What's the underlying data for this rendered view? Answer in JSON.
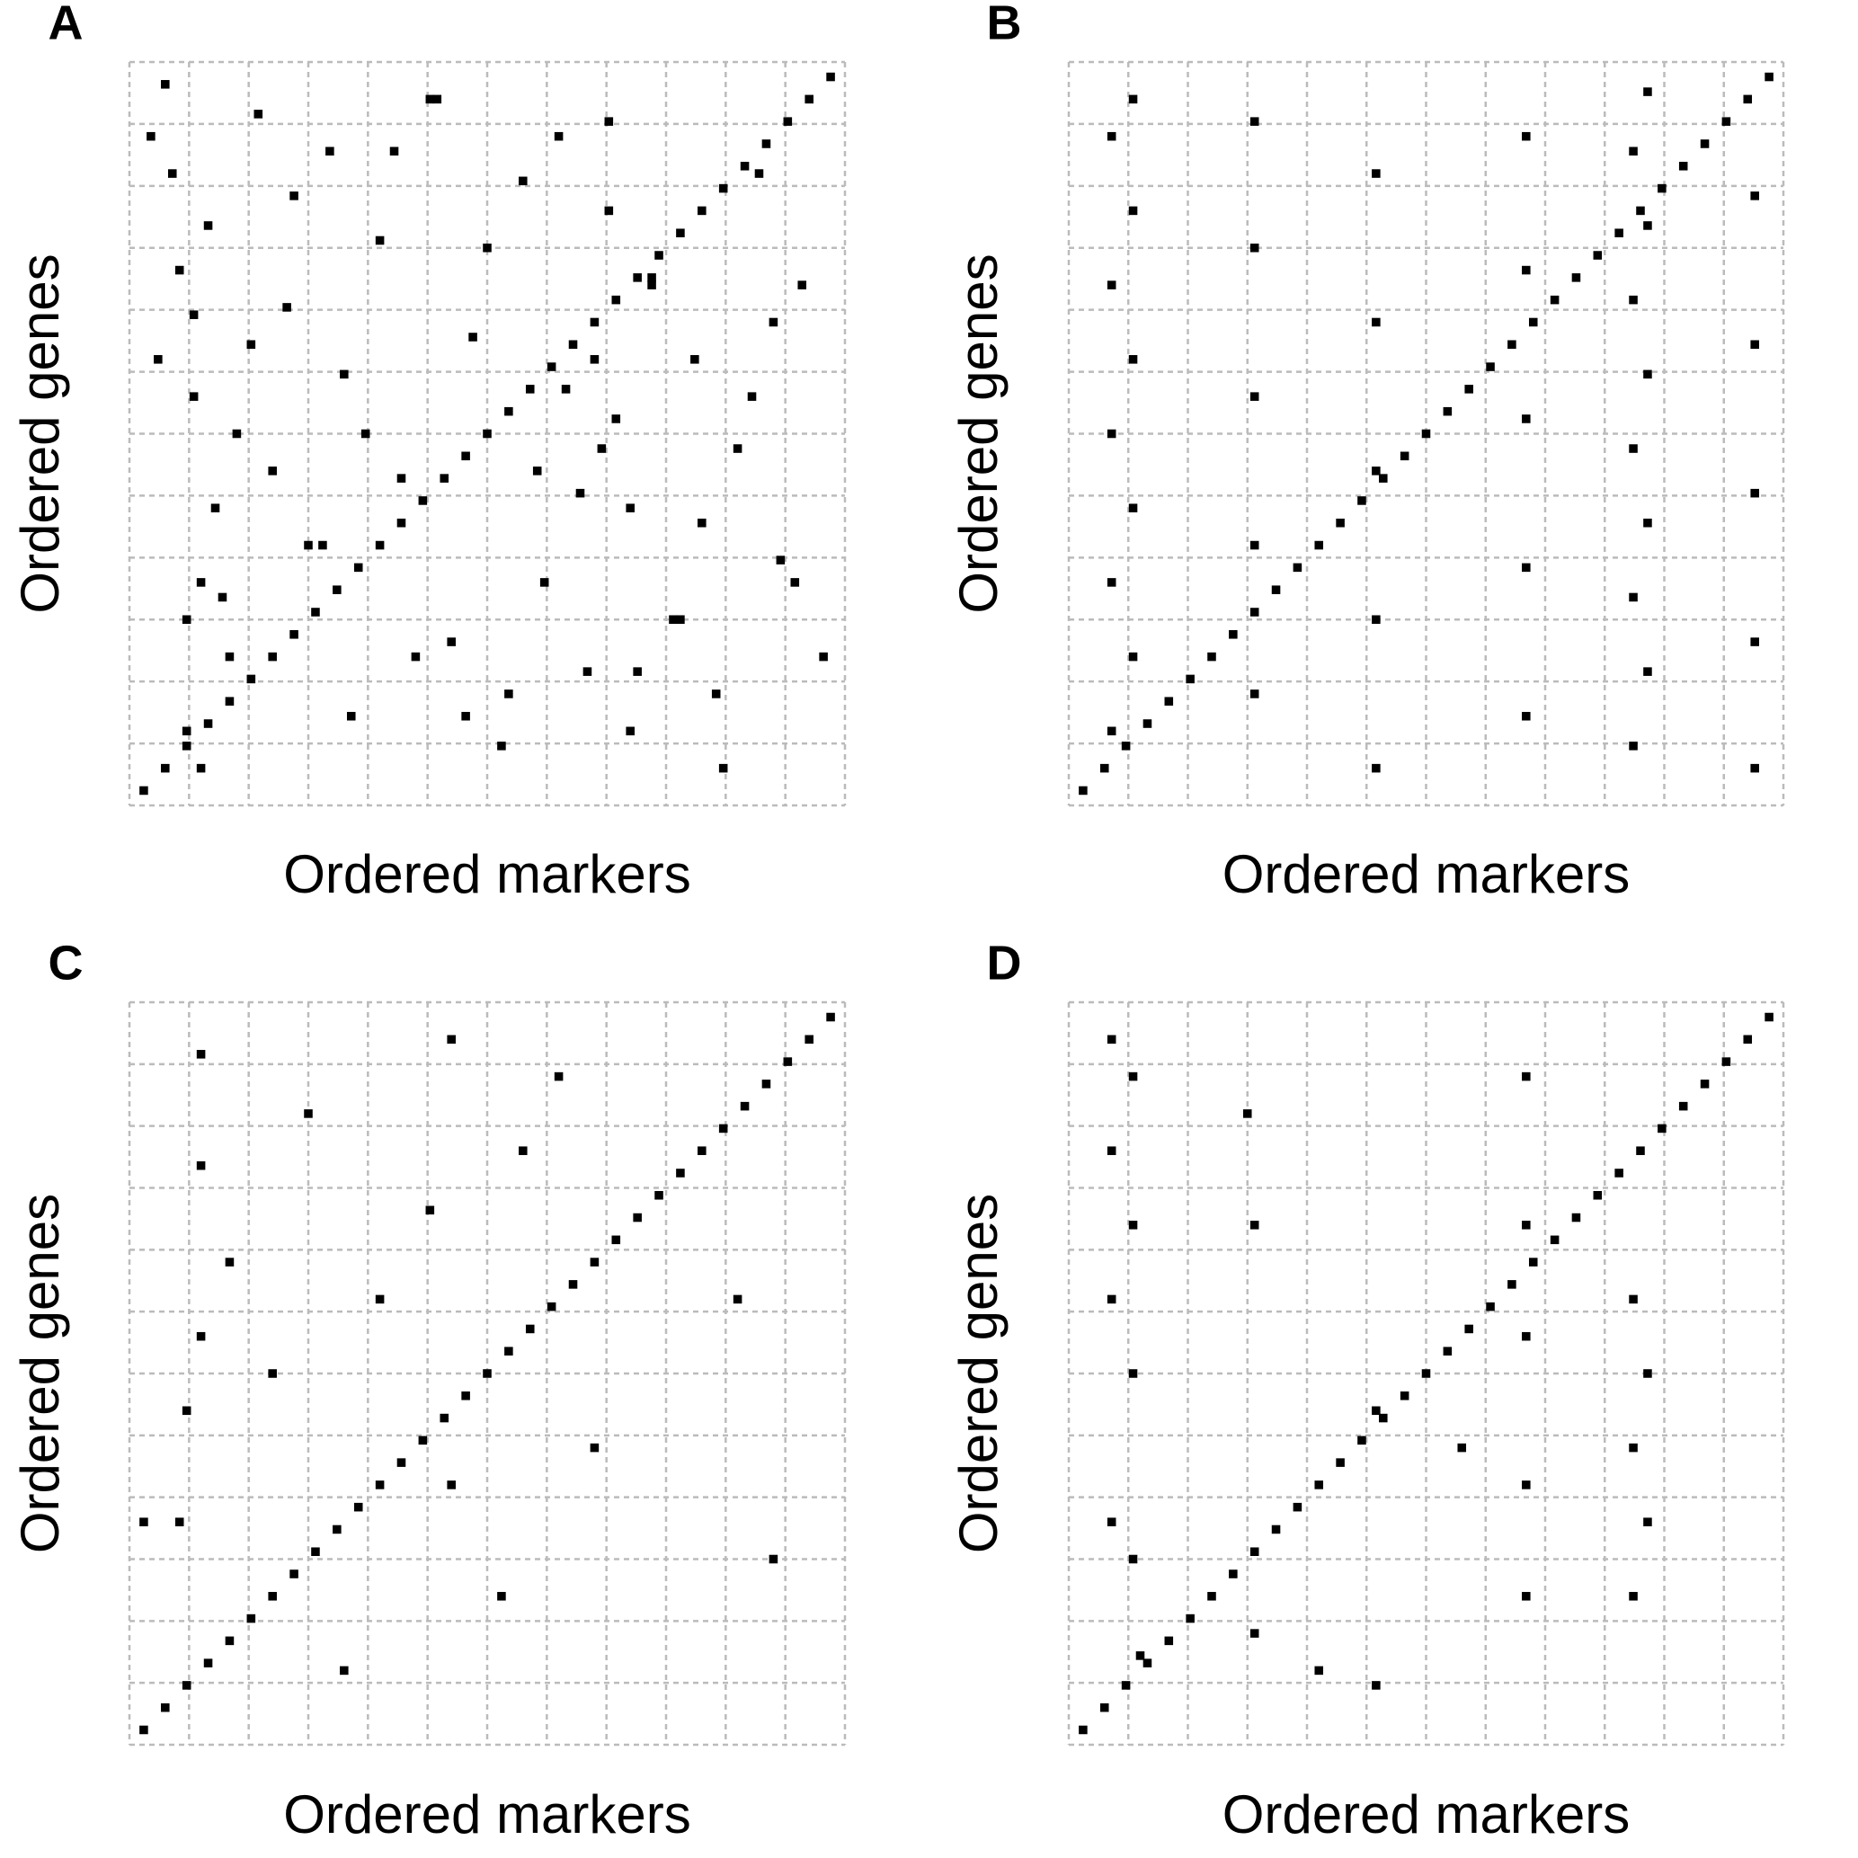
{
  "chart_data": [
    {
      "type": "scatter",
      "panel_label": "A",
      "xlabel": "Ordered markers",
      "ylabel": "Ordered genes",
      "xlim": [
        0,
        100
      ],
      "ylim": [
        0,
        100
      ],
      "grid": true,
      "color": "#000000",
      "x": [
        2,
        5,
        8,
        11,
        14,
        17,
        20,
        23,
        26,
        29,
        32,
        35,
        38,
        41,
        44,
        47,
        50,
        53,
        56,
        59,
        62,
        65,
        68,
        71,
        74,
        77,
        80,
        83,
        86,
        89,
        92,
        95,
        98,
        3,
        7,
        9,
        12,
        14,
        6,
        10,
        4,
        8,
        11,
        15,
        18,
        22,
        25,
        28,
        31,
        35,
        38,
        42,
        45,
        48,
        52,
        55,
        58,
        61,
        64,
        67,
        70,
        73,
        76,
        79,
        82,
        85,
        88,
        91,
        94,
        97,
        20,
        30,
        40,
        50,
        60,
        70,
        80,
        90,
        13,
        23,
        33,
        43,
        53,
        63,
        73,
        83,
        93,
        17,
        27,
        37,
        47,
        57,
        67,
        77,
        87,
        5,
        65,
        66,
        68,
        71,
        9,
        8,
        10
      ],
      "values": [
        2,
        5,
        8,
        11,
        14,
        17,
        20,
        23,
        26,
        29,
        32,
        35,
        38,
        41,
        44,
        47,
        50,
        53,
        56,
        59,
        62,
        65,
        68,
        71,
        74,
        77,
        80,
        83,
        86,
        89,
        92,
        95,
        98,
        90,
        72,
        55,
        40,
        20,
        85,
        30,
        60,
        10,
        78,
        50,
        93,
        67,
        35,
        88,
        12,
        76,
        44,
        95,
        22,
        63,
        8,
        84,
        30,
        56,
        18,
        92,
        40,
        71,
        25,
        60,
        15,
        48,
        85,
        33,
        70,
        20,
        45,
        58,
        20,
        75,
        90,
        10,
        38,
        65,
        28,
        82,
        50,
        95,
        15,
        42,
        70,
        5,
        30,
        62,
        35,
        88,
        12,
        45,
        80,
        25,
        55,
        97,
        60,
        48,
        52,
        18,
        66,
        25,
        5
      ]
    },
    {
      "type": "scatter",
      "panel_label": "B",
      "xlabel": "Ordered markers",
      "ylabel": "Ordered genes",
      "xlim": [
        0,
        100
      ],
      "ylim": [
        0,
        100
      ],
      "grid": true,
      "color": "#000000",
      "x": [
        2,
        5,
        8,
        11,
        14,
        17,
        20,
        23,
        26,
        29,
        32,
        35,
        38,
        41,
        44,
        47,
        50,
        53,
        56,
        59,
        62,
        65,
        68,
        71,
        74,
        77,
        80,
        83,
        86,
        89,
        92,
        95,
        98,
        6,
        6,
        6,
        6,
        6,
        9,
        9,
        9,
        9,
        9,
        26,
        26,
        26,
        26,
        26,
        43,
        43,
        43,
        43,
        43,
        64,
        64,
        64,
        64,
        64,
        79,
        79,
        79,
        79,
        79,
        81,
        81,
        81,
        81,
        81,
        96,
        96,
        96,
        96,
        96
      ],
      "values": [
        2,
        5,
        8,
        11,
        14,
        17,
        20,
        23,
        26,
        29,
        32,
        35,
        38,
        41,
        44,
        47,
        50,
        53,
        56,
        59,
        62,
        65,
        68,
        71,
        74,
        77,
        80,
        83,
        86,
        89,
        92,
        95,
        98,
        10,
        30,
        50,
        70,
        90,
        20,
        40,
        60,
        80,
        95,
        15,
        35,
        55,
        75,
        92,
        5,
        25,
        45,
        65,
        85,
        12,
        32,
        52,
        72,
        90,
        8,
        28,
        48,
        68,
        88,
        18,
        38,
        58,
        78,
        96,
        5,
        22,
        42,
        62,
        82
      ]
    },
    {
      "type": "scatter",
      "panel_label": "C",
      "xlabel": "Ordered markers",
      "ylabel": "Ordered genes",
      "xlim": [
        0,
        100
      ],
      "ylim": [
        0,
        100
      ],
      "grid": true,
      "color": "#000000",
      "x": [
        2,
        5,
        8,
        11,
        14,
        17,
        20,
        23,
        26,
        29,
        32,
        35,
        38,
        41,
        44,
        47,
        50,
        53,
        56,
        59,
        62,
        65,
        68,
        71,
        74,
        77,
        80,
        83,
        86,
        89,
        92,
        95,
        98,
        10,
        10,
        10,
        7,
        25,
        35,
        45,
        52,
        8,
        42,
        65,
        60,
        85,
        30,
        14,
        20,
        55,
        90,
        45,
        2
      ],
      "values": [
        2,
        5,
        8,
        11,
        14,
        17,
        20,
        23,
        26,
        29,
        32,
        35,
        38,
        41,
        44,
        47,
        50,
        53,
        56,
        59,
        62,
        65,
        68,
        71,
        74,
        77,
        80,
        83,
        86,
        89,
        92,
        95,
        98,
        93,
        78,
        55,
        30,
        85,
        60,
        35,
        20,
        45,
        72,
        40,
        90,
        60,
        10,
        65,
        50,
        80,
        25,
        95,
        30
      ]
    },
    {
      "type": "scatter",
      "panel_label": "D",
      "xlabel": "Ordered markers",
      "ylabel": "Ordered genes",
      "xlim": [
        0,
        100
      ],
      "ylim": [
        0,
        100
      ],
      "grid": true,
      "color": "#000000",
      "x": [
        2,
        5,
        8,
        11,
        14,
        17,
        20,
        23,
        26,
        29,
        32,
        35,
        38,
        41,
        44,
        47,
        50,
        53,
        56,
        59,
        62,
        65,
        68,
        71,
        74,
        77,
        80,
        83,
        86,
        89,
        92,
        95,
        98,
        6,
        6,
        6,
        6,
        9,
        9,
        9,
        9,
        26,
        26,
        43,
        43,
        64,
        64,
        64,
        64,
        64,
        79,
        79,
        79,
        81,
        81,
        25,
        35,
        10,
        55
      ],
      "values": [
        2,
        5,
        8,
        11,
        14,
        17,
        20,
        23,
        26,
        29,
        32,
        35,
        38,
        41,
        44,
        47,
        50,
        53,
        56,
        59,
        62,
        65,
        68,
        71,
        74,
        77,
        80,
        83,
        86,
        89,
        92,
        95,
        98,
        95,
        80,
        60,
        30,
        90,
        70,
        50,
        25,
        15,
        70,
        8,
        45,
        90,
        70,
        55,
        35,
        20,
        60,
        40,
        20,
        50,
        30,
        85,
        10,
        12,
        40
      ]
    }
  ]
}
